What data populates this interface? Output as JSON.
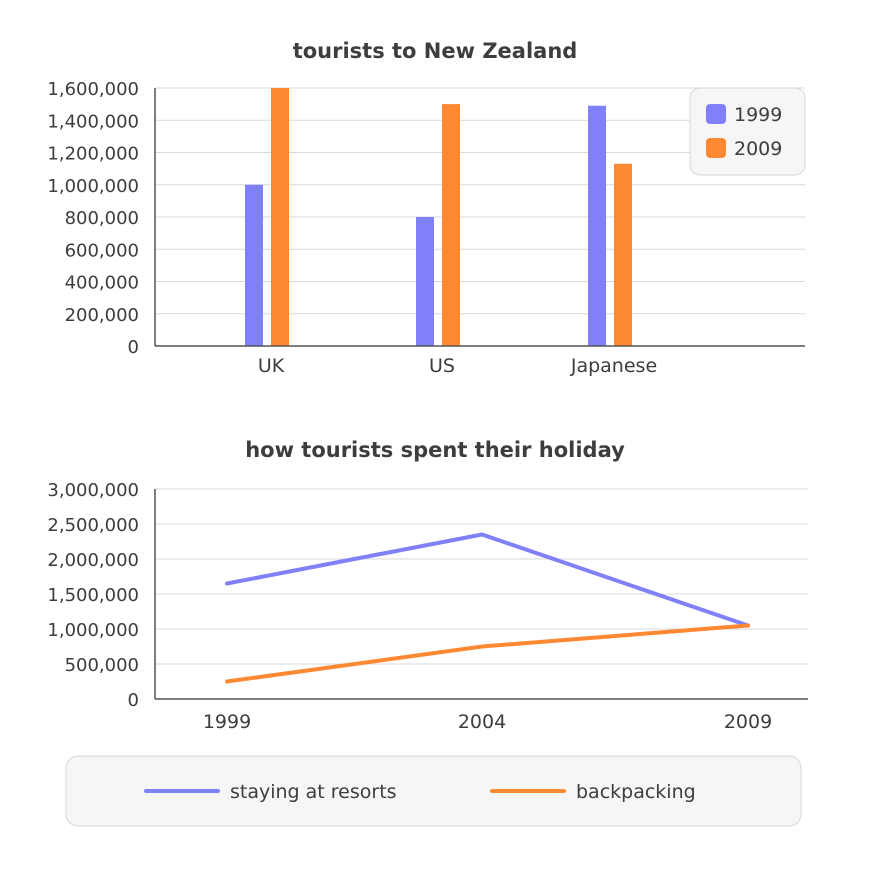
{
  "chart_data": [
    {
      "type": "bar",
      "title": "tourists to New Zealand",
      "categories": [
        "UK",
        "US",
        "Japanese"
      ],
      "series": [
        {
          "name": "1999",
          "color": "#8080f8",
          "values": [
            1000000,
            800000,
            1490000
          ]
        },
        {
          "name": "2009",
          "color": "#ff8833",
          "values": [
            1600000,
            1500000,
            1130000
          ]
        }
      ],
      "ylim": [
        0,
        1600000
      ],
      "yticks": [
        "0",
        "200,000",
        "400,000",
        "600,000",
        "800,000",
        "1,000,000",
        "1,200,000",
        "1,400,000",
        "1,600,000"
      ],
      "grid": true,
      "legend": "top-right"
    },
    {
      "type": "line",
      "title": "how tourists spent their holiday",
      "x": [
        "1999",
        "2004",
        "2009"
      ],
      "series": [
        {
          "name": "staying at resorts",
          "color": "#8080f8",
          "values": [
            1650000,
            2350000,
            1050000
          ]
        },
        {
          "name": "backpacking",
          "color": "#ff8833",
          "values": [
            250000,
            750000,
            1050000
          ]
        }
      ],
      "ylim": [
        0,
        3000000
      ],
      "yticks": [
        "0",
        "500,000",
        "1,000,000",
        "1,500,000",
        "2,000,000",
        "2,500,000",
        "3,000,000"
      ],
      "grid": true,
      "legend": "bottom"
    }
  ]
}
